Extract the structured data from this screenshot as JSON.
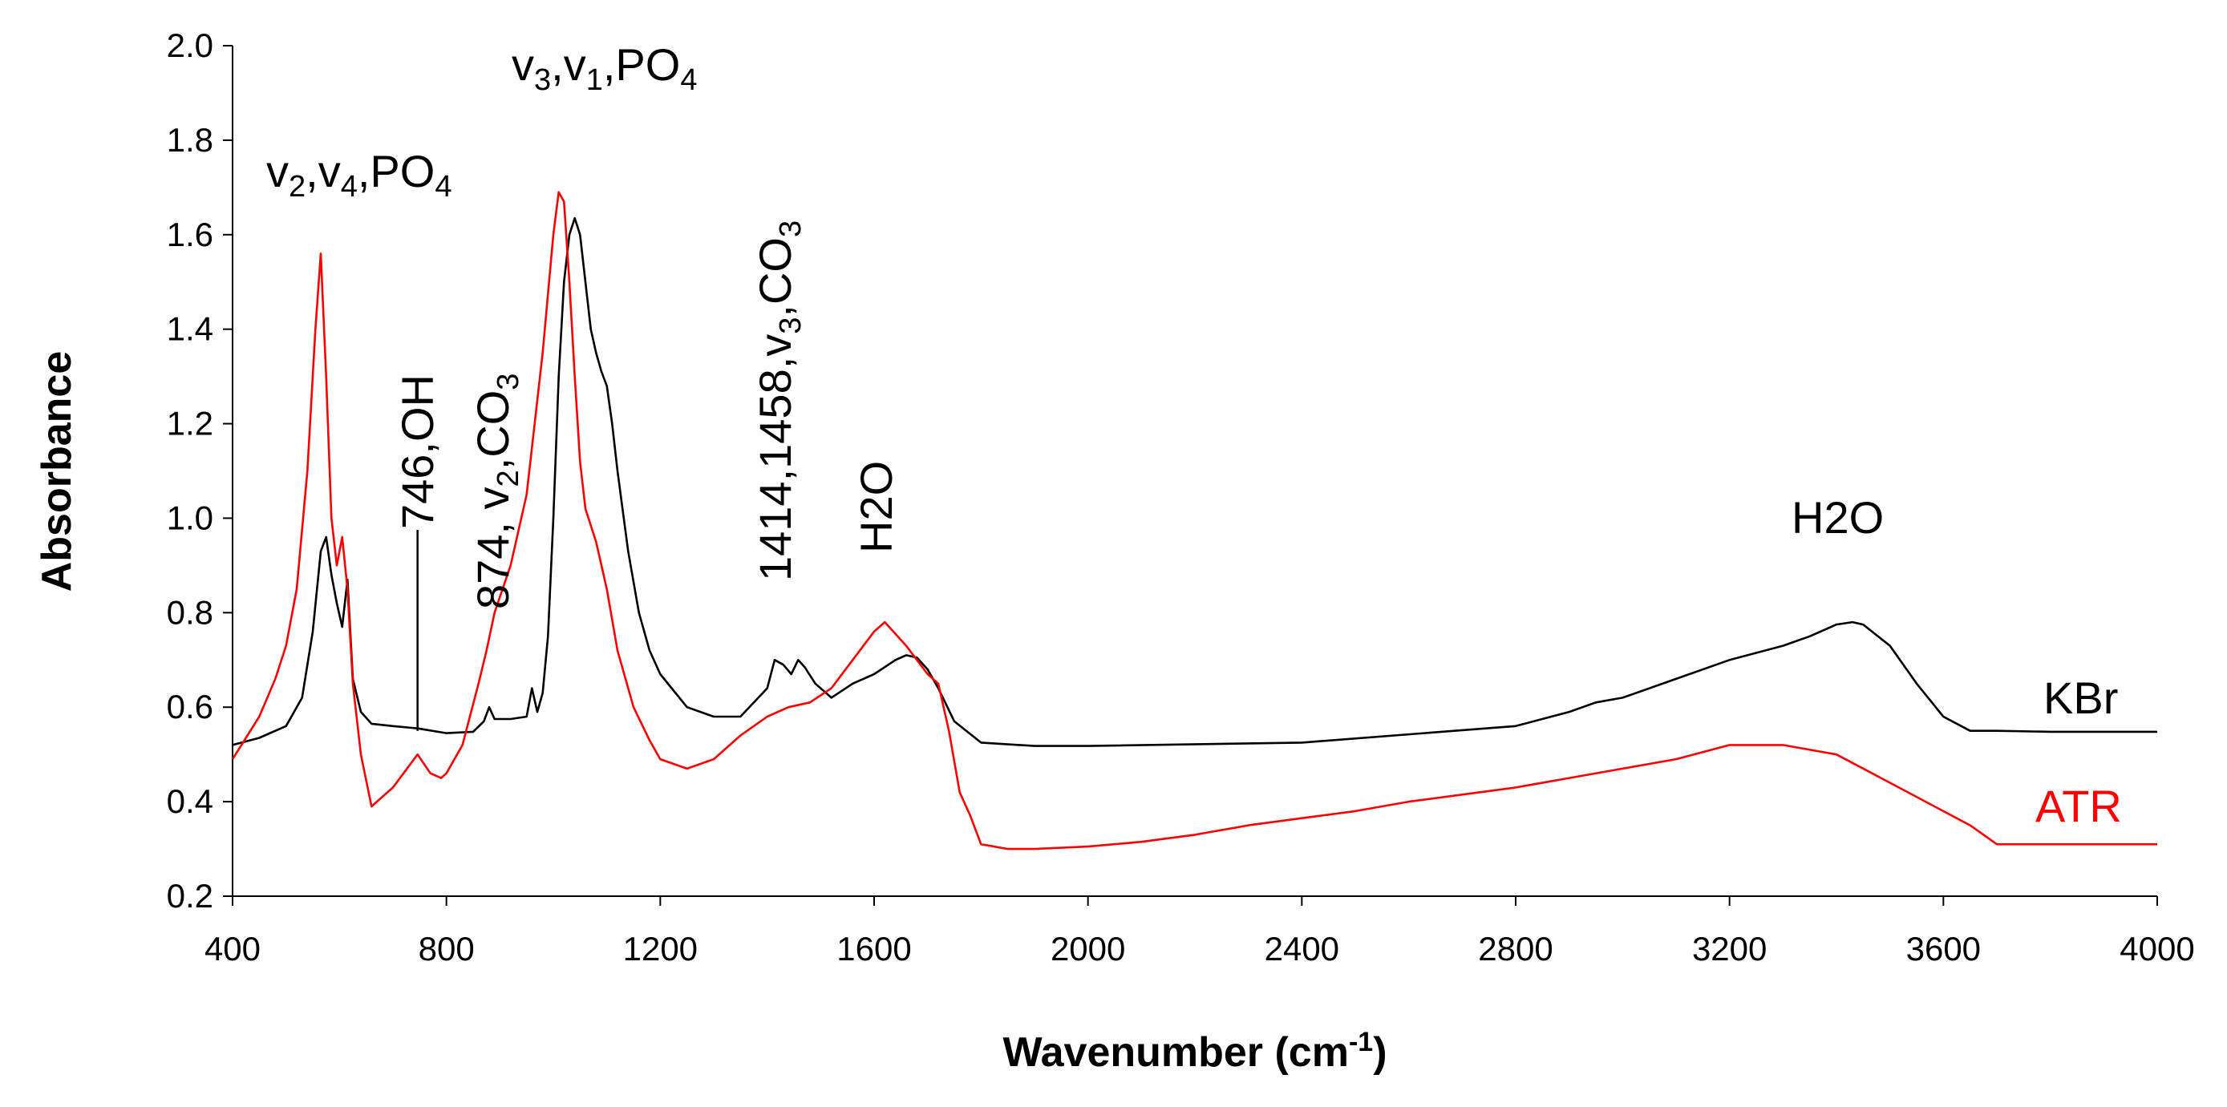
{
  "chart_data": {
    "type": "line",
    "title": "",
    "xlabel": "Wavenumber (cm",
    "xlabel_sup": "-1",
    "xlabel_close": ")",
    "ylabel": "Absorbance",
    "xlim": [
      400,
      4000
    ],
    "ylim": [
      0.2,
      2.0
    ],
    "grid": false,
    "x_ticks": [
      400,
      800,
      1200,
      1600,
      2000,
      2400,
      2800,
      3200,
      3600,
      4000
    ],
    "x_tick_labels": [
      "400",
      "800",
      "1200",
      "1600",
      "2000",
      "2400",
      "2800",
      "3200",
      "3600",
      "4000"
    ],
    "y_ticks": [
      0.2,
      0.4,
      0.6,
      0.8,
      1.0,
      1.2,
      1.4,
      1.6,
      1.8,
      2.0
    ],
    "y_tick_labels": [
      "0.2",
      "0.4",
      "0.6",
      "0.8",
      "1.0",
      "1.2",
      "1.4",
      "1.6",
      "1.8",
      "2.0"
    ],
    "series": [
      {
        "name": "KBr",
        "color": "#000000",
        "x": [
          400,
          450,
          500,
          530,
          550,
          565,
          575,
          585,
          595,
          605,
          615,
          625,
          640,
          660,
          700,
          746,
          800,
          850,
          870,
          880,
          890,
          920,
          950,
          960,
          970,
          980,
          990,
          1000,
          1010,
          1020,
          1030,
          1040,
          1050,
          1060,
          1070,
          1080,
          1090,
          1100,
          1110,
          1120,
          1140,
          1160,
          1180,
          1200,
          1250,
          1300,
          1350,
          1400,
          1414,
          1430,
          1445,
          1458,
          1470,
          1490,
          1520,
          1560,
          1600,
          1640,
          1660,
          1680,
          1700,
          1720,
          1750,
          1800,
          1900,
          2000,
          2400,
          2800,
          2900,
          2950,
          3000,
          3100,
          3200,
          3300,
          3350,
          3400,
          3430,
          3450,
          3500,
          3550,
          3600,
          3650,
          3700,
          3800,
          4000
        ],
        "y": [
          0.52,
          0.535,
          0.56,
          0.62,
          0.76,
          0.93,
          0.96,
          0.88,
          0.82,
          0.77,
          0.87,
          0.66,
          0.59,
          0.565,
          0.56,
          0.555,
          0.545,
          0.548,
          0.57,
          0.6,
          0.575,
          0.575,
          0.58,
          0.64,
          0.59,
          0.63,
          0.75,
          1.0,
          1.3,
          1.5,
          1.6,
          1.635,
          1.6,
          1.5,
          1.4,
          1.35,
          1.31,
          1.28,
          1.2,
          1.1,
          0.93,
          0.8,
          0.72,
          0.67,
          0.6,
          0.58,
          0.58,
          0.64,
          0.7,
          0.69,
          0.67,
          0.7,
          0.685,
          0.65,
          0.62,
          0.65,
          0.67,
          0.7,
          0.71,
          0.705,
          0.68,
          0.64,
          0.57,
          0.525,
          0.518,
          0.518,
          0.525,
          0.56,
          0.59,
          0.61,
          0.62,
          0.66,
          0.7,
          0.73,
          0.75,
          0.775,
          0.78,
          0.775,
          0.73,
          0.65,
          0.58,
          0.55,
          0.55,
          0.548,
          0.548
        ]
      },
      {
        "name": "ATR",
        "color": "#ff0000",
        "x": [
          400,
          450,
          480,
          500,
          520,
          540,
          555,
          565,
          575,
          585,
          595,
          605,
          615,
          625,
          640,
          660,
          700,
          746,
          770,
          790,
          800,
          830,
          860,
          875,
          890,
          920,
          950,
          980,
          1000,
          1010,
          1020,
          1030,
          1040,
          1050,
          1060,
          1080,
          1100,
          1120,
          1150,
          1180,
          1200,
          1250,
          1300,
          1350,
          1400,
          1440,
          1480,
          1520,
          1560,
          1600,
          1620,
          1660,
          1700,
          1720,
          1740,
          1760,
          1780,
          1800,
          1850,
          1900,
          2000,
          2100,
          2200,
          2300,
          2400,
          2500,
          2600,
          2800,
          2900,
          3000,
          3100,
          3200,
          3300,
          3400,
          3500,
          3600,
          3650,
          3700,
          4000
        ],
        "y": [
          0.49,
          0.58,
          0.66,
          0.73,
          0.85,
          1.1,
          1.4,
          1.56,
          1.3,
          1.0,
          0.9,
          0.96,
          0.85,
          0.65,
          0.5,
          0.39,
          0.43,
          0.5,
          0.46,
          0.45,
          0.46,
          0.52,
          0.65,
          0.72,
          0.8,
          0.9,
          1.05,
          1.35,
          1.6,
          1.69,
          1.67,
          1.5,
          1.3,
          1.12,
          1.02,
          0.95,
          0.85,
          0.72,
          0.6,
          0.53,
          0.49,
          0.47,
          0.49,
          0.54,
          0.58,
          0.6,
          0.61,
          0.64,
          0.7,
          0.76,
          0.78,
          0.73,
          0.67,
          0.65,
          0.55,
          0.42,
          0.37,
          0.31,
          0.3,
          0.3,
          0.305,
          0.315,
          0.33,
          0.35,
          0.365,
          0.38,
          0.4,
          0.43,
          0.45,
          0.47,
          0.49,
          0.52,
          0.52,
          0.5,
          0.44,
          0.38,
          0.35,
          0.31,
          0.31
        ]
      }
    ],
    "annotations": [
      {
        "id": "v2v4po4",
        "parts": [
          [
            "v",
            ""
          ],
          [
            "2",
            "sub"
          ],
          [
            ",v",
            ""
          ],
          [
            "4",
            "sub"
          ],
          [
            ",PO",
            ""
          ],
          [
            "4",
            "sub"
          ]
        ]
      },
      {
        "id": "v3v1po4",
        "parts": [
          [
            "v",
            ""
          ],
          [
            "3",
            "sub"
          ],
          [
            ",v",
            ""
          ],
          [
            "1",
            "sub"
          ],
          [
            ",PO",
            ""
          ],
          [
            "4",
            "sub"
          ]
        ]
      },
      {
        "id": "oh746",
        "parts": [
          [
            "746,OH",
            ""
          ]
        ]
      },
      {
        "id": "co3874",
        "parts": [
          [
            "874, v",
            ""
          ],
          [
            "2",
            "sub"
          ],
          [
            ",CO",
            ""
          ],
          [
            "3",
            "sub"
          ]
        ]
      },
      {
        "id": "co31414",
        "parts": [
          [
            "1414,1458,v",
            ""
          ],
          [
            "3",
            "sub"
          ],
          [
            ",CO",
            ""
          ],
          [
            "3",
            "sub"
          ]
        ]
      },
      {
        "id": "h2o1",
        "parts": [
          [
            "H2O",
            ""
          ]
        ]
      },
      {
        "id": "h2o2",
        "parts": [
          [
            "H2O",
            ""
          ]
        ]
      }
    ]
  }
}
